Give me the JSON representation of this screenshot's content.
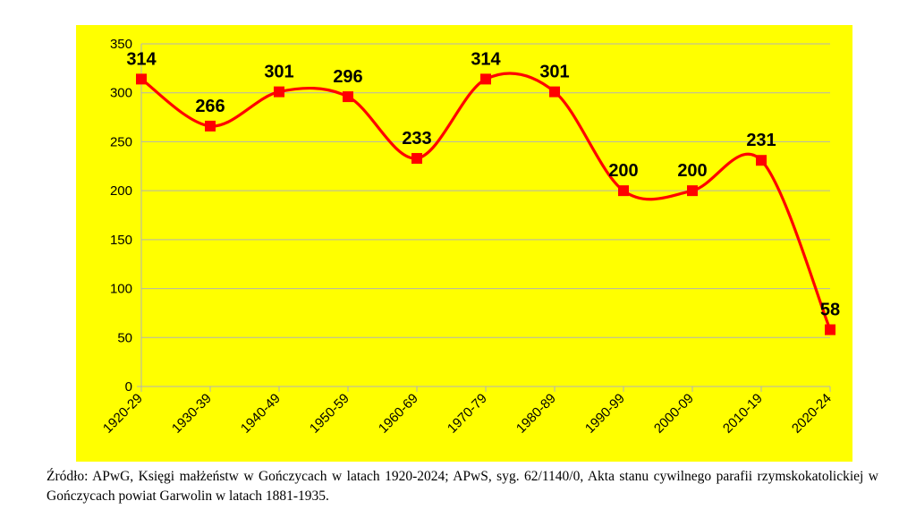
{
  "chart_data": {
    "type": "line",
    "categories": [
      "1920-29",
      "1930-39",
      "1940-49",
      "1950-59",
      "1960-69",
      "1970-79",
      "1980-89",
      "1990-99",
      "2000-09",
      "2010-19",
      "2020-24"
    ],
    "series": [
      {
        "values": [
          314,
          266,
          301,
          296,
          233,
          314,
          301,
          200,
          200,
          231,
          58
        ]
      }
    ],
    "ylim": [
      0,
      350
    ],
    "yticks": [
      0,
      50,
      100,
      150,
      200,
      250,
      300,
      350
    ],
    "smooth": true,
    "marker": "square",
    "grid": true,
    "legend": "none",
    "data_labels": true
  },
  "colors": {
    "background": "#ffff00",
    "line": "#ff0000",
    "marker": "#ff0000",
    "grid": "#b3b3b3",
    "axis": "#b3b3b3"
  },
  "caption": "Źródło: APwG, Księgi małżeństw w Gończycach w latach 1920-2024; APwS, syg. 62/1140/0, Akta stanu cywilnego parafii rzymskokatolickiej w Gończycach powiat Garwolin w latach 1881-1935."
}
